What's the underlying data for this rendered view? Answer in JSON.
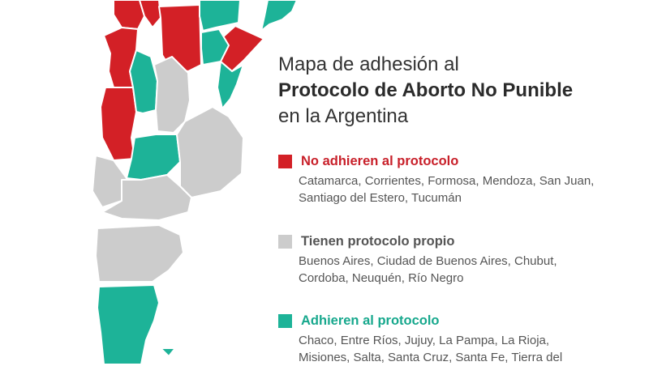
{
  "title": {
    "line1": "Mapa de adhesión al",
    "line2": "Protocolo de Aborto No Punible",
    "line3": "en la Argentina"
  },
  "colors": {
    "no_adhieren": "#d32026",
    "protocolo_propio": "#cccccc",
    "adhieren": "#1db398",
    "border": "#ffffff"
  },
  "legend": {
    "no_adhieren": {
      "label": "No adhieren al protocolo",
      "provinces": "Catamarca, Corrientes, Formosa, Mendoza, San Juan, Santiago del Estero, Tucumán"
    },
    "protocolo_propio": {
      "label": "Tienen protocolo propio",
      "provinces": "Buenos Aires, Ciudad de Buenos Aires, Chubut, Cordoba, Neuquén, Río Negro"
    },
    "adhieren": {
      "label": "Adhieren al protocolo",
      "provinces": "Chaco, Entre Ríos, Jujuy, La Pampa, La Rioja, Misiones, Salta, Santa Cruz, Santa Fe, Tierra del"
    }
  }
}
